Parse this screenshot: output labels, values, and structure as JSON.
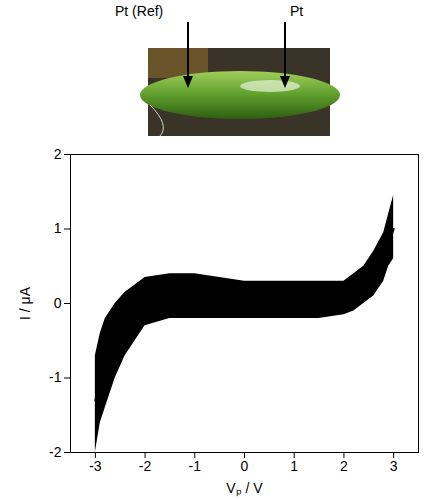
{
  "chart_data": {
    "type": "line",
    "xlabel": "Vₚ / V",
    "ylabel": "I / μA",
    "x": [
      -3,
      -2.9,
      -2.8,
      -2.6,
      -2.4,
      -2.2,
      -2,
      -1.5,
      -1,
      -0.5,
      0,
      0.5,
      1,
      1.5,
      2,
      2.2,
      2.4,
      2.6,
      2.8,
      2.9,
      3
    ],
    "values": [
      -1.3,
      -1.0,
      -0.8,
      -0.5,
      -0.3,
      -0.15,
      -0.05,
      0.05,
      0.05,
      0.05,
      0.05,
      0.05,
      0.05,
      0.05,
      0.08,
      0.12,
      0.2,
      0.35,
      0.6,
      0.8,
      1.0
    ],
    "upper": [
      -0.7,
      -0.4,
      -0.2,
      0.0,
      0.15,
      0.25,
      0.35,
      0.4,
      0.4,
      0.35,
      0.3,
      0.3,
      0.3,
      0.3,
      0.3,
      0.4,
      0.5,
      0.7,
      0.95,
      1.2,
      1.45
    ],
    "lower": [
      -2.0,
      -1.6,
      -1.4,
      -1.0,
      -0.7,
      -0.5,
      -0.3,
      -0.2,
      -0.2,
      -0.2,
      -0.2,
      -0.2,
      -0.2,
      -0.2,
      -0.15,
      -0.1,
      0.0,
      0.1,
      0.3,
      0.5,
      0.6
    ],
    "color": "#000000",
    "xlim": [
      -3.5,
      3.5
    ],
    "xticks": [
      -3,
      -2,
      -1,
      0,
      1,
      2,
      3
    ],
    "ylim": [
      -2,
      2
    ],
    "yticks": [
      -2,
      -1,
      0,
      1,
      2
    ],
    "grid": false
  },
  "inset": {
    "labels": [
      "Pt (Ref)",
      "Pt"
    ]
  }
}
